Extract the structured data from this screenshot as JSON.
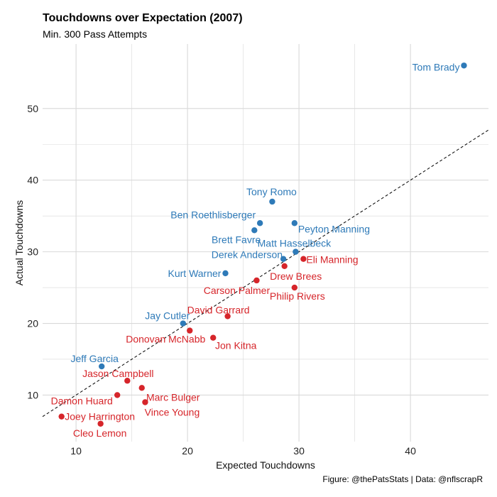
{
  "title": "Touchdowns over Expectation (2007)",
  "subtitle": "Min. 300 Pass Attempts",
  "caption": "Figure: @thePatsStats | Data: @nflscrapR",
  "colors": {
    "above": "#2e7ab8",
    "below": "#d6252a",
    "grid": "#d9d9d9",
    "ref_line": "#000000"
  },
  "chart_data": {
    "type": "scatter",
    "title": "Touchdowns over Expectation (2007)",
    "subtitle": "Min. 300 Pass Attempts",
    "xlabel": "Expected Touchdowns",
    "ylabel": "Actual Touchdowns",
    "xlim": [
      7,
      47
    ],
    "ylim": [
      3.5,
      59
    ],
    "xticks": [
      10,
      20,
      30,
      40
    ],
    "yticks": [
      10,
      20,
      30,
      40,
      50
    ],
    "grid": true,
    "reference_line": "y = x",
    "points": [
      {
        "name": "Tom Brady",
        "x": 44.8,
        "y": 56,
        "group": "above"
      },
      {
        "name": "Tony Romo",
        "x": 27.6,
        "y": 37,
        "group": "above"
      },
      {
        "name": "Ben Roethlisberger",
        "x": 26.5,
        "y": 34,
        "group": "above"
      },
      {
        "name": "Peyton Manning",
        "x": 29.6,
        "y": 34,
        "group": "above"
      },
      {
        "name": "Brett Favre",
        "x": 26.0,
        "y": 33,
        "group": "above"
      },
      {
        "name": "Matt Hasselbeck",
        "x": 29.7,
        "y": 30,
        "group": "above"
      },
      {
        "name": "Derek Anderson",
        "x": 28.6,
        "y": 29,
        "group": "above"
      },
      {
        "name": "Kurt Warner",
        "x": 23.4,
        "y": 27,
        "group": "above"
      },
      {
        "name": "Jay Cutler",
        "x": 19.6,
        "y": 20,
        "group": "above"
      },
      {
        "name": "Jeff Garcia",
        "x": 12.3,
        "y": 14,
        "group": "above"
      },
      {
        "name": "Eli Manning",
        "x": 30.4,
        "y": 29,
        "group": "below"
      },
      {
        "name": "Drew Brees",
        "x": 28.7,
        "y": 28,
        "group": "below"
      },
      {
        "name": "Carson Palmer",
        "x": 26.2,
        "y": 26,
        "group": "below"
      },
      {
        "name": "Philip Rivers",
        "x": 29.6,
        "y": 25,
        "group": "below"
      },
      {
        "name": "David Garrard",
        "x": 23.6,
        "y": 21,
        "group": "below"
      },
      {
        "name": "Donovan McNabb",
        "x": 20.2,
        "y": 19,
        "group": "below"
      },
      {
        "name": "Jon Kitna",
        "x": 22.3,
        "y": 18,
        "group": "below"
      },
      {
        "name": "Jason Campbell",
        "x": 14.6,
        "y": 12,
        "group": "below"
      },
      {
        "name": "Marc Bulger",
        "x": 15.9,
        "y": 11,
        "group": "below"
      },
      {
        "name": "Damon Huard",
        "x": 13.7,
        "y": 10,
        "group": "below"
      },
      {
        "name": "Vince Young",
        "x": 16.2,
        "y": 9,
        "group": "below"
      },
      {
        "name": "Joey Harrington",
        "x": 8.7,
        "y": 7,
        "group": "below"
      },
      {
        "name": "Cleo Lemon",
        "x": 12.2,
        "y": 6,
        "group": "below"
      }
    ]
  }
}
